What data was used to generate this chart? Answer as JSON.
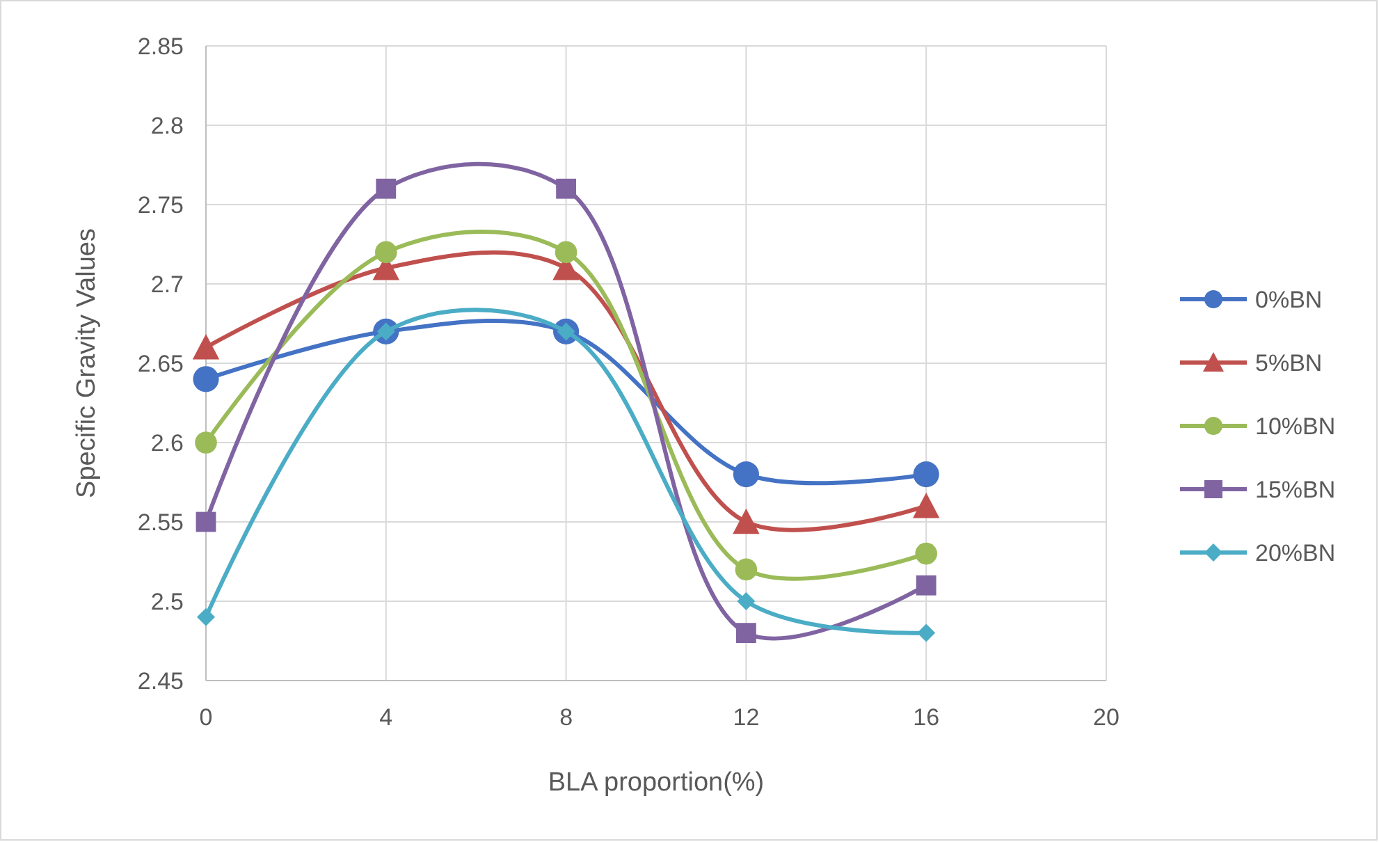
{
  "chart_data": {
    "type": "line",
    "xlabel": "BLA proportion(%)",
    "ylabel": "Specific Gravity Values",
    "x": [
      0,
      4,
      8,
      12,
      16
    ],
    "xlim": [
      0,
      20
    ],
    "xticks": [
      0,
      4,
      8,
      12,
      16,
      20
    ],
    "ylim": [
      2.45,
      2.85
    ],
    "yticks": [
      2.45,
      2.5,
      2.55,
      2.6,
      2.65,
      2.7,
      2.75,
      2.8,
      2.85
    ],
    "grid": true,
    "legend": "right",
    "line_style": "solid",
    "series": [
      {
        "name": "0%BN",
        "color": "#4472c4",
        "marker": "circle",
        "values": [
          2.64,
          2.67,
          2.67,
          2.58,
          2.58
        ]
      },
      {
        "name": "5%BN",
        "color": "#c0504d",
        "marker": "triangle",
        "values": [
          2.66,
          2.71,
          2.71,
          2.55,
          2.56
        ]
      },
      {
        "name": "10%BN",
        "color": "#9bbb59",
        "marker": "circle",
        "values": [
          2.6,
          2.72,
          2.72,
          2.52,
          2.53
        ]
      },
      {
        "name": "15%BN",
        "color": "#8064a2",
        "marker": "square",
        "values": [
          2.55,
          2.76,
          2.76,
          2.48,
          2.51
        ]
      },
      {
        "name": "20%BN",
        "color": "#4bacc6",
        "marker": "diamond",
        "values": [
          2.49,
          2.67,
          2.67,
          2.5,
          2.48
        ]
      }
    ]
  }
}
